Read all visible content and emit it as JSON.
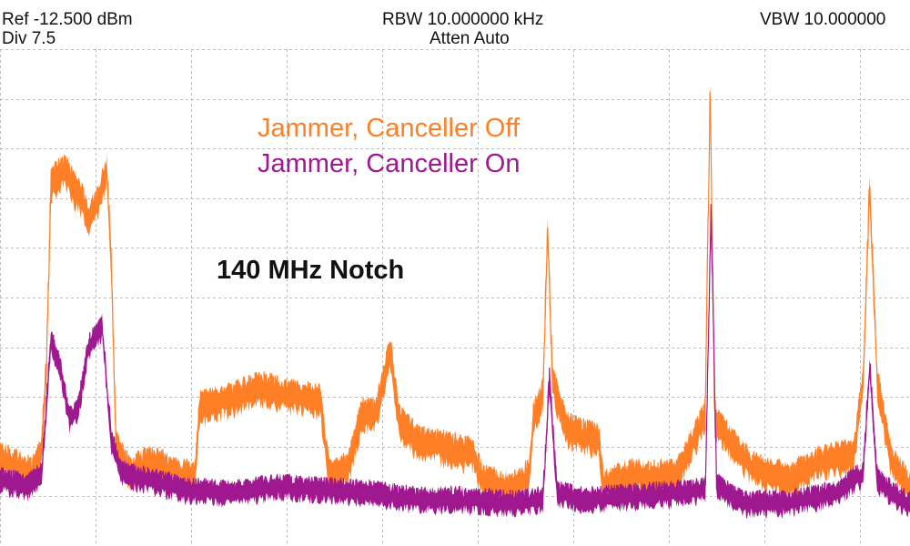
{
  "header": {
    "ref": "Ref -12.500 dBm",
    "div": "Div 7.5",
    "rbw": "RBW 10.000000 kHz",
    "atten": "Atten Auto",
    "vbw": "VBW 10.000000"
  },
  "colors": {
    "canceller_off": "#ff7f27",
    "canceller_on": "#a0188f",
    "grid": "#bdbdbd"
  },
  "chart_data": {
    "type": "line",
    "title": "",
    "xlabel": "",
    "ylabel": "",
    "annotation": "140 MHz Notch",
    "grid": true,
    "legend_position": "top-center",
    "ref_level_dbm": -12.5,
    "db_per_div": 7.5,
    "x_divisions": 10,
    "y_divisions": 10,
    "xlim": [
      0,
      10
    ],
    "ylim": [
      -87.5,
      -12.5
    ],
    "series": [
      {
        "name": "Jammer, Canceller Off",
        "color": "#ff7f27",
        "points": [
          [
            0.0,
            -73.5
          ],
          [
            0.2,
            -75
          ],
          [
            0.35,
            -76
          ],
          [
            0.45,
            -72
          ],
          [
            0.5,
            -60
          ],
          [
            0.55,
            -32
          ],
          [
            0.7,
            -30
          ],
          [
            0.8,
            -33
          ],
          [
            0.9,
            -35
          ],
          [
            0.95,
            -38
          ],
          [
            1.05,
            -35
          ],
          [
            1.15,
            -30
          ],
          [
            1.2,
            -45
          ],
          [
            1.25,
            -72
          ],
          [
            1.4,
            -76
          ],
          [
            1.6,
            -74
          ],
          [
            1.9,
            -76
          ],
          [
            2.1,
            -76.5
          ],
          [
            2.15,
            -66
          ],
          [
            2.5,
            -64.5
          ],
          [
            2.8,
            -63
          ],
          [
            3.1,
            -64
          ],
          [
            3.45,
            -65
          ],
          [
            3.55,
            -76.5
          ],
          [
            3.75,
            -75
          ],
          [
            3.9,
            -67
          ],
          [
            4.05,
            -67
          ],
          [
            4.2,
            -57
          ],
          [
            4.3,
            -68
          ],
          [
            4.5,
            -71
          ],
          [
            4.8,
            -72
          ],
          [
            5.1,
            -73
          ],
          [
            5.2,
            -77
          ],
          [
            5.5,
            -78.5
          ],
          [
            5.7,
            -76
          ],
          [
            5.75,
            -67
          ],
          [
            5.85,
            -64
          ],
          [
            5.9,
            -39
          ],
          [
            5.95,
            -62
          ],
          [
            6.1,
            -69
          ],
          [
            6.45,
            -71
          ],
          [
            6.5,
            -78
          ],
          [
            6.8,
            -76
          ],
          [
            7.0,
            -76.5
          ],
          [
            7.3,
            -76
          ],
          [
            7.6,
            -67
          ],
          [
            7.65,
            -18
          ],
          [
            7.7,
            -68
          ],
          [
            8.1,
            -75
          ],
          [
            8.5,
            -77
          ],
          [
            8.85,
            -74
          ],
          [
            9.2,
            -73
          ],
          [
            9.3,
            -62
          ],
          [
            9.37,
            -33
          ],
          [
            9.45,
            -62
          ],
          [
            9.6,
            -74
          ],
          [
            9.8,
            -78
          ],
          [
            10.0,
            -80
          ]
        ]
      },
      {
        "name": "Jammer, Canceller On",
        "color": "#a0188f",
        "points": [
          [
            0.0,
            -77
          ],
          [
            0.3,
            -78
          ],
          [
            0.45,
            -76
          ],
          [
            0.55,
            -56
          ],
          [
            0.65,
            -60
          ],
          [
            0.75,
            -68
          ],
          [
            0.85,
            -66
          ],
          [
            0.95,
            -57
          ],
          [
            1.1,
            -54
          ],
          [
            1.2,
            -71
          ],
          [
            1.3,
            -76
          ],
          [
            1.6,
            -77
          ],
          [
            2.0,
            -78.5
          ],
          [
            2.5,
            -79
          ],
          [
            3.0,
            -78
          ],
          [
            3.5,
            -78.5
          ],
          [
            4.0,
            -79
          ],
          [
            4.5,
            -80
          ],
          [
            5.0,
            -80
          ],
          [
            5.5,
            -80.5
          ],
          [
            5.85,
            -80
          ],
          [
            5.92,
            -62
          ],
          [
            6.0,
            -79
          ],
          [
            6.3,
            -80
          ],
          [
            6.8,
            -79.5
          ],
          [
            7.3,
            -79
          ],
          [
            7.6,
            -78.5
          ],
          [
            7.66,
            -36
          ],
          [
            7.72,
            -78
          ],
          [
            8.0,
            -80.5
          ],
          [
            8.5,
            -80.5
          ],
          [
            9.0,
            -79
          ],
          [
            9.3,
            -76
          ],
          [
            9.37,
            -60
          ],
          [
            9.45,
            -77
          ],
          [
            9.7,
            -80
          ],
          [
            10.0,
            -82
          ]
        ]
      }
    ]
  }
}
